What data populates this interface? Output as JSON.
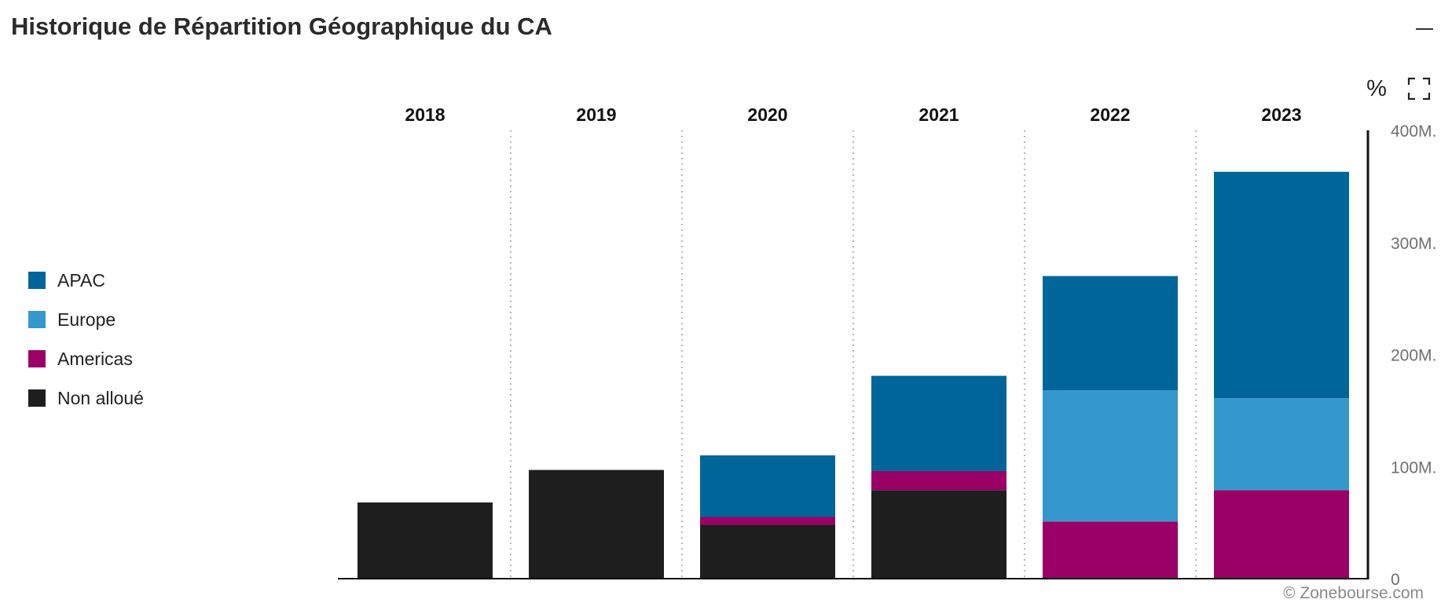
{
  "header": {
    "title": "Historique de Répartition Géographique du CA",
    "percent_toggle": "%",
    "minimize_icon": "minus-icon",
    "fullscreen_icon": "fullscreen-icon"
  },
  "credit": "© Zonebourse.com",
  "chart_data": {
    "type": "bar",
    "stacked": true,
    "categories": [
      "2018",
      "2019",
      "2020",
      "2021",
      "2022",
      "2023"
    ],
    "series": [
      {
        "name": "Non alloué",
        "color": "#1e1e1e",
        "values": [
          68,
          97,
          48,
          79,
          1,
          1
        ]
      },
      {
        "name": "Americas",
        "color": "#9b0066",
        "values": [
          0,
          0,
          7,
          17,
          50,
          78
        ]
      },
      {
        "name": "Europe",
        "color": "#3498cc",
        "values": [
          0,
          0,
          0,
          0,
          117,
          82
        ]
      },
      {
        "name": "APAC",
        "color": "#006699",
        "values": [
          0,
          0,
          55,
          85,
          102,
          202
        ]
      }
    ],
    "legend_order": [
      "APAC",
      "Europe",
      "Americas",
      "Non alloué"
    ],
    "legend_position": "left",
    "ylim": [
      0,
      400
    ],
    "yticks": [
      {
        "value": 0,
        "label": "0"
      },
      {
        "value": 100,
        "label": "100M."
      },
      {
        "value": 200,
        "label": "200M."
      },
      {
        "value": 300,
        "label": "300M."
      },
      {
        "value": 400,
        "label": "400M."
      }
    ],
    "y_axis_side": "right",
    "category_labels_position": "top",
    "grid": "vertical-dotted-separators"
  }
}
